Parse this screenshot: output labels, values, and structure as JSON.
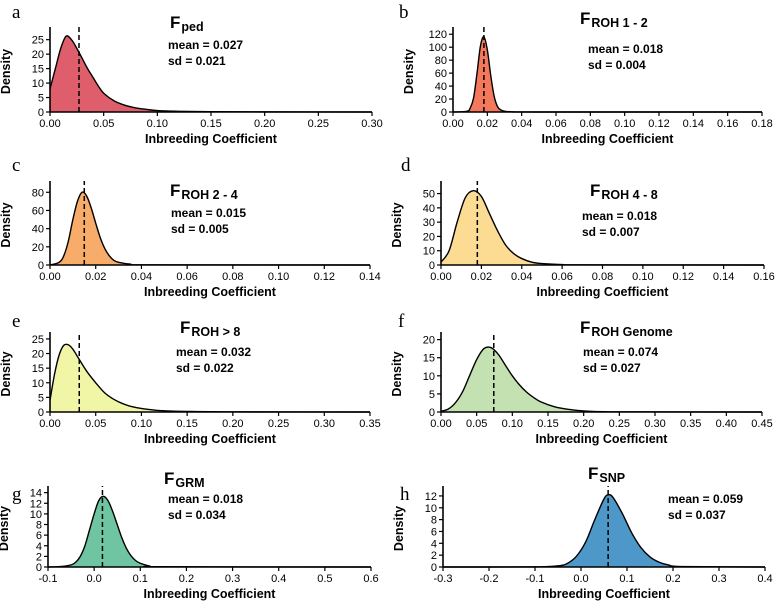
{
  "figure": {
    "y_axis_label": "Density"
  },
  "chart_data": [
    {
      "panel": "a",
      "type": "area",
      "title_main": "F",
      "title_sub": "ped",
      "xlabel": "Inbreeding Coefficient",
      "ylabel": "Density",
      "xlim": [
        0.0,
        0.3
      ],
      "ylim": [
        0,
        28
      ],
      "x_ticks": [
        0.0,
        0.05,
        0.1,
        0.15,
        0.2,
        0.25,
        0.3
      ],
      "x_decimals": 2,
      "y_ticks": [
        0,
        5,
        10,
        15,
        20,
        25
      ],
      "mean": 0.027,
      "sd": 0.021,
      "mean_label": "mean = 0.027",
      "sd_label": "sd = 0.021",
      "fill": "#de5f6b",
      "density": {
        "x": [
          0.0,
          0.005,
          0.01,
          0.015,
          0.02,
          0.025,
          0.03,
          0.035,
          0.04,
          0.045,
          0.05,
          0.06,
          0.07,
          0.08,
          0.09,
          0.1,
          0.12,
          0.15,
          0.2,
          0.3
        ],
        "y": [
          8,
          15,
          22,
          26.2,
          25,
          22,
          18.5,
          15,
          12,
          9,
          6.5,
          3.8,
          2.3,
          1.4,
          0.9,
          0.5,
          0.25,
          0.1,
          0.04,
          0.0
        ]
      }
    },
    {
      "panel": "b",
      "type": "area",
      "title_main": "F",
      "title_sub": "ROH 1 - 2",
      "xlabel": "Inbreeding Coefficient",
      "ylabel": "Density",
      "xlim": [
        0.0,
        0.18
      ],
      "ylim": [
        0,
        125
      ],
      "x_ticks": [
        0.0,
        0.02,
        0.04,
        0.06,
        0.08,
        0.1,
        0.12,
        0.14,
        0.16,
        0.18
      ],
      "x_decimals": 2,
      "y_ticks": [
        0,
        20,
        40,
        60,
        80,
        100,
        120
      ],
      "mean": 0.018,
      "sd": 0.004,
      "mean_label": "mean = 0.018",
      "sd_label": "sd = 0.004",
      "fill": "#f4795c",
      "density": {
        "x": [
          0.0,
          0.008,
          0.01,
          0.012,
          0.014,
          0.016,
          0.018,
          0.02,
          0.022,
          0.024,
          0.026,
          0.028,
          0.03,
          0.035,
          0.05,
          0.18
        ],
        "y": [
          0,
          1,
          6,
          22,
          60,
          102,
          116,
          96,
          56,
          24,
          8,
          3,
          1.2,
          0.3,
          0.0,
          0.0
        ]
      }
    },
    {
      "panel": "c",
      "type": "area",
      "title_main": "F",
      "title_sub": "ROH 2 - 4",
      "xlabel": "Inbreeding Coefficient",
      "ylabel": "Density",
      "xlim": [
        0.0,
        0.14
      ],
      "ylim": [
        0,
        88
      ],
      "x_ticks": [
        0.0,
        0.02,
        0.04,
        0.06,
        0.08,
        0.1,
        0.12,
        0.14
      ],
      "x_decimals": 2,
      "y_ticks": [
        0,
        20,
        40,
        60,
        80
      ],
      "mean": 0.015,
      "sd": 0.005,
      "mean_label": "mean = 0.015",
      "sd_label": "sd = 0.005",
      "fill": "#f7ac6a",
      "density": {
        "x": [
          0.0,
          0.004,
          0.006,
          0.008,
          0.01,
          0.012,
          0.014,
          0.016,
          0.018,
          0.02,
          0.022,
          0.024,
          0.026,
          0.028,
          0.03,
          0.035,
          0.045,
          0.14
        ],
        "y": [
          0,
          3,
          10,
          26,
          50,
          70,
          80,
          76,
          63,
          46,
          30,
          18,
          10,
          5,
          3,
          1,
          0.2,
          0.0
        ]
      }
    },
    {
      "panel": "d",
      "type": "area",
      "title_main": "F",
      "title_sub": "ROH 4 - 8",
      "xlabel": "Inbreeding Coefficient",
      "ylabel": "Density",
      "xlim": [
        0.0,
        0.16
      ],
      "ylim": [
        0,
        56
      ],
      "x_ticks": [
        0.0,
        0.02,
        0.04,
        0.06,
        0.08,
        0.1,
        0.12,
        0.14,
        0.16
      ],
      "x_decimals": 2,
      "y_ticks": [
        0,
        10,
        20,
        30,
        40,
        50
      ],
      "mean": 0.018,
      "sd": 0.007,
      "mean_label": "mean = 0.018",
      "sd_label": "sd = 0.007",
      "fill": "#fcdc92",
      "density": {
        "x": [
          0.0,
          0.004,
          0.008,
          0.012,
          0.016,
          0.02,
          0.024,
          0.028,
          0.032,
          0.036,
          0.04,
          0.045,
          0.05,
          0.06,
          0.07,
          0.16
        ],
        "y": [
          2,
          10,
          30,
          47,
          52,
          48,
          36,
          24,
          14,
          8,
          4.5,
          2,
          1,
          0.3,
          0.1,
          0.0
        ]
      }
    },
    {
      "panel": "e",
      "type": "area",
      "title_main": "F",
      "title_sub": "ROH > 8",
      "xlabel": "Inbreeding Coefficient",
      "ylabel": "Density",
      "xlim": [
        0.0,
        0.35
      ],
      "ylim": [
        0,
        26
      ],
      "x_ticks": [
        0.0,
        0.05,
        0.1,
        0.15,
        0.2,
        0.25,
        0.3,
        0.35
      ],
      "x_decimals": 2,
      "y_ticks": [
        0,
        5,
        10,
        15,
        20,
        25
      ],
      "mean": 0.032,
      "sd": 0.022,
      "mean_label": "mean = 0.032",
      "sd_label": "sd = 0.022",
      "fill": "#f0f6a6",
      "density": {
        "x": [
          0.0,
          0.005,
          0.01,
          0.015,
          0.02,
          0.025,
          0.03,
          0.04,
          0.05,
          0.06,
          0.07,
          0.08,
          0.09,
          0.1,
          0.12,
          0.15,
          0.2,
          0.35
        ],
        "y": [
          4,
          13,
          19.5,
          22.8,
          23,
          21.5,
          19,
          14,
          10,
          6.5,
          4.3,
          2.8,
          1.8,
          1.2,
          0.5,
          0.2,
          0.05,
          0.0
        ]
      }
    },
    {
      "panel": "f",
      "type": "area",
      "title_main": "F",
      "title_sub": "ROH Genome",
      "xlabel": "Inbreeding Coefficient",
      "ylabel": "Density",
      "xlim": [
        0.0,
        0.45
      ],
      "ylim": [
        0,
        21
      ],
      "x_ticks": [
        0.0,
        0.05,
        0.1,
        0.15,
        0.2,
        0.25,
        0.3,
        0.35,
        0.4,
        0.45
      ],
      "x_decimals": 2,
      "y_ticks": [
        0,
        5,
        10,
        15,
        20
      ],
      "mean": 0.074,
      "sd": 0.027,
      "mean_label": "mean = 0.074",
      "sd_label": "sd = 0.027",
      "fill": "#c4e1b1",
      "density": {
        "x": [
          0.0,
          0.01,
          0.02,
          0.03,
          0.04,
          0.05,
          0.06,
          0.07,
          0.08,
          0.09,
          0.1,
          0.11,
          0.12,
          0.13,
          0.14,
          0.16,
          0.18,
          0.2,
          0.25,
          0.45
        ],
        "y": [
          0.2,
          0.8,
          2.5,
          5.5,
          10,
          14.5,
          17.5,
          17.8,
          16,
          13,
          10,
          7.5,
          5.5,
          4,
          2.8,
          1.4,
          0.7,
          0.3,
          0.05,
          0.0
        ]
      }
    },
    {
      "panel": "g",
      "type": "area",
      "title_main": "F",
      "title_sub": "GRM",
      "xlabel": "Inbreeding Coefficient",
      "ylabel": "Density",
      "xlim": [
        -0.1,
        0.6
      ],
      "ylim": [
        0,
        14.5
      ],
      "x_ticks": [
        -0.1,
        0.0,
        0.1,
        0.2,
        0.3,
        0.4,
        0.5,
        0.6
      ],
      "x_decimals": 1,
      "y_ticks": [
        0,
        2,
        4,
        6,
        8,
        10,
        12,
        14
      ],
      "mean": 0.018,
      "sd": 0.034,
      "mean_label": "mean = 0.018",
      "sd_label": "sd = 0.034",
      "fill": "#6fc4a2",
      "density": {
        "x": [
          -0.1,
          -0.07,
          -0.05,
          -0.04,
          -0.03,
          -0.02,
          -0.01,
          0.0,
          0.01,
          0.02,
          0.03,
          0.04,
          0.05,
          0.06,
          0.07,
          0.08,
          0.09,
          0.1,
          0.12,
          0.15,
          0.6
        ],
        "y": [
          0.0,
          0.1,
          0.4,
          0.9,
          2,
          4,
          7,
          10,
          12.5,
          13.3,
          12.5,
          10.5,
          8,
          5.5,
          3.5,
          2.1,
          1.2,
          0.7,
          0.2,
          0.05,
          0.0
        ]
      }
    },
    {
      "panel": "h",
      "type": "area",
      "title_main": "F",
      "title_sub": "SNP",
      "xlabel": "Inbreeding Coefficient",
      "ylabel": "Density",
      "xlim": [
        -0.3,
        0.4
      ],
      "ylim": [
        0,
        13
      ],
      "x_ticks": [
        -0.3,
        -0.2,
        -0.1,
        0.0,
        0.1,
        0.2,
        0.3,
        0.4
      ],
      "x_decimals": 1,
      "y_ticks": [
        0,
        2,
        4,
        6,
        8,
        10,
        12
      ],
      "mean": 0.059,
      "sd": 0.037,
      "mean_label": "mean = 0.059",
      "sd_label": "sd = 0.037",
      "fill": "#4d98c9",
      "density": {
        "x": [
          -0.3,
          -0.1,
          -0.05,
          -0.03,
          -0.01,
          0.01,
          0.03,
          0.05,
          0.06,
          0.07,
          0.09,
          0.11,
          0.13,
          0.15,
          0.17,
          0.19,
          0.22,
          0.4
        ],
        "y": [
          0.0,
          0.02,
          0.2,
          0.6,
          1.8,
          4.2,
          8,
          11.5,
          12.2,
          11.7,
          9,
          5.8,
          3.3,
          1.7,
          0.8,
          0.35,
          0.08,
          0.0
        ]
      }
    }
  ]
}
